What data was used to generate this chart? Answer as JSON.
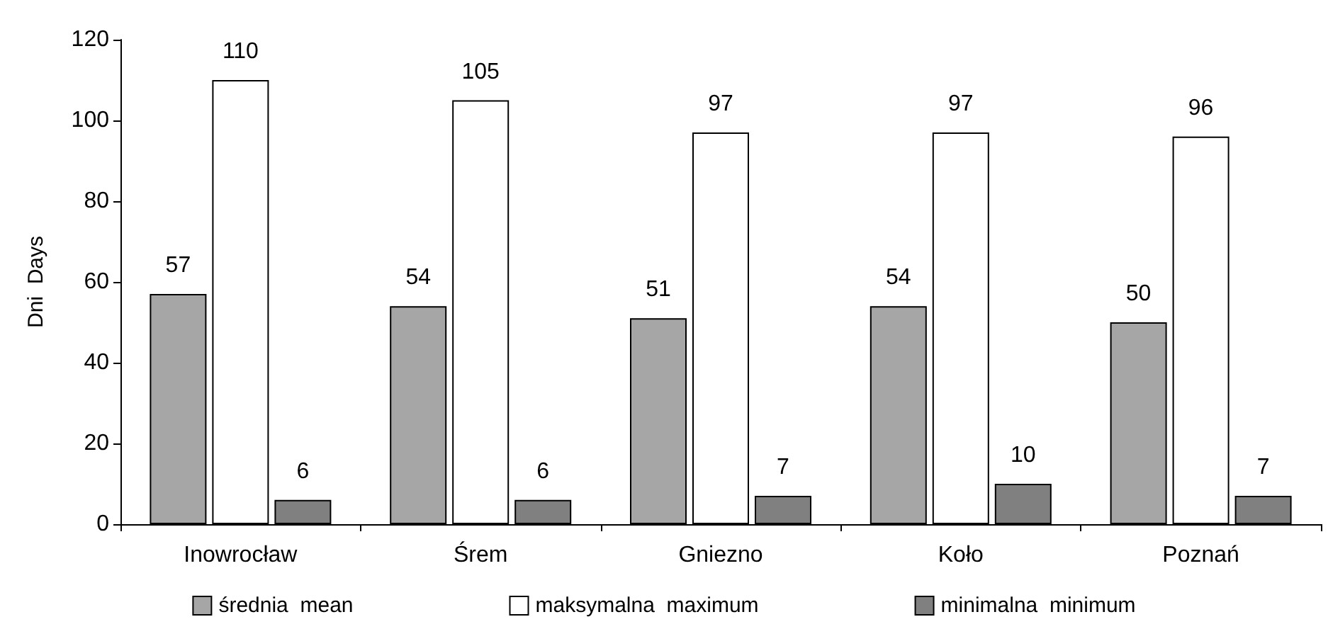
{
  "chart_data": {
    "type": "bar",
    "ylabel": "Dni  Days",
    "categories": [
      "Inowrocław",
      "Śrem",
      "Gniezno",
      "Koło",
      "Poznań"
    ],
    "series": [
      {
        "name": "średnia  mean",
        "color": "#a6a6a6",
        "values": [
          57,
          54,
          51,
          54,
          50
        ]
      },
      {
        "name": "maksymalna  maximum",
        "color": "#ffffff",
        "values": [
          110,
          105,
          97,
          97,
          96
        ]
      },
      {
        "name": "minimalna  minimum",
        "color": "#808080",
        "values": [
          6,
          6,
          7,
          10,
          7
        ]
      }
    ],
    "ylim": [
      0,
      120
    ],
    "yticks": [
      0,
      20,
      40,
      60,
      80,
      100,
      120
    ],
    "data_labels": true,
    "grid": false,
    "legend": "bottom"
  }
}
